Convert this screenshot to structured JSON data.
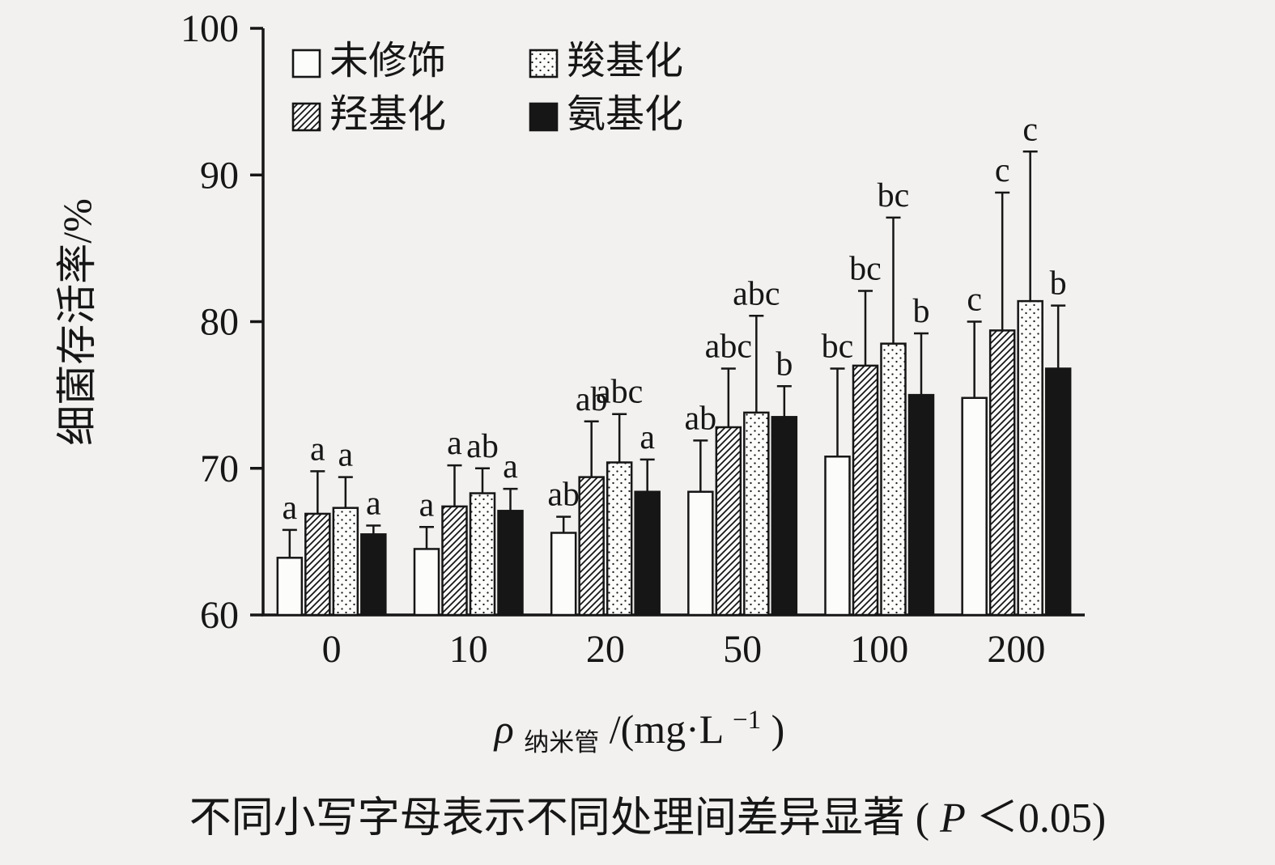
{
  "chart_data": {
    "type": "bar",
    "title": "",
    "ylabel": "细菌存活率/%",
    "xlabel": "ρ纳米管/(mg·L−1)",
    "xlabel_parts": {
      "rho": "ρ",
      "sub": "纳米管",
      "mid": "/(mg·L",
      "sup": "−1",
      "end": ")"
    },
    "caption": "不同小写字母表示不同处理间差异显著 (P＜0.05)",
    "caption_parts": {
      "pre": "不同小写字母表示不同处理间差异显著 (",
      "italic": "P",
      "post": "＜0.05)"
    },
    "ylim": [
      60,
      100
    ],
    "yticks": [
      60,
      70,
      80,
      90,
      100
    ],
    "categories": [
      "0",
      "10",
      "20",
      "50",
      "100",
      "200"
    ],
    "grid": false,
    "legend_position": "top-left-inside",
    "legend": [
      {
        "label": "未修饰",
        "style": "open"
      },
      {
        "label": "羧基化",
        "style": "dot"
      },
      {
        "label": "羟基化",
        "style": "hatch"
      },
      {
        "label": "氨基化",
        "style": "solid"
      }
    ],
    "series": [
      {
        "name": "未修饰",
        "style": "open",
        "values": [
          63.9,
          64.5,
          65.6,
          68.4,
          70.8,
          74.8
        ],
        "errors": [
          1.9,
          1.5,
          1.1,
          3.5,
          6.0,
          5.2
        ],
        "letters": [
          "a",
          "a",
          "ab",
          "ab",
          "bc",
          "c"
        ]
      },
      {
        "name": "羟基化",
        "style": "hatch",
        "values": [
          66.9,
          67.4,
          69.4,
          72.8,
          77.0,
          79.4
        ],
        "errors": [
          2.9,
          2.8,
          3.8,
          4.0,
          5.1,
          9.4
        ],
        "letters": [
          "a",
          "a",
          "ab",
          "abc",
          "bc",
          "c"
        ]
      },
      {
        "name": "羧基化",
        "style": "dot",
        "values": [
          67.3,
          68.3,
          70.4,
          73.8,
          78.5,
          81.4
        ],
        "errors": [
          2.1,
          1.7,
          3.3,
          6.6,
          8.6,
          10.2
        ],
        "letters": [
          "a",
          "ab",
          "abc",
          "abc",
          "bc",
          "c"
        ]
      },
      {
        "name": "氨基化",
        "style": "solid",
        "values": [
          65.5,
          67.1,
          68.4,
          73.5,
          75.0,
          76.8
        ],
        "errors": [
          0.6,
          1.5,
          2.2,
          2.1,
          4.2,
          4.3
        ],
        "letters": [
          "a",
          "a",
          "a",
          "b",
          "b",
          "b"
        ]
      }
    ]
  }
}
